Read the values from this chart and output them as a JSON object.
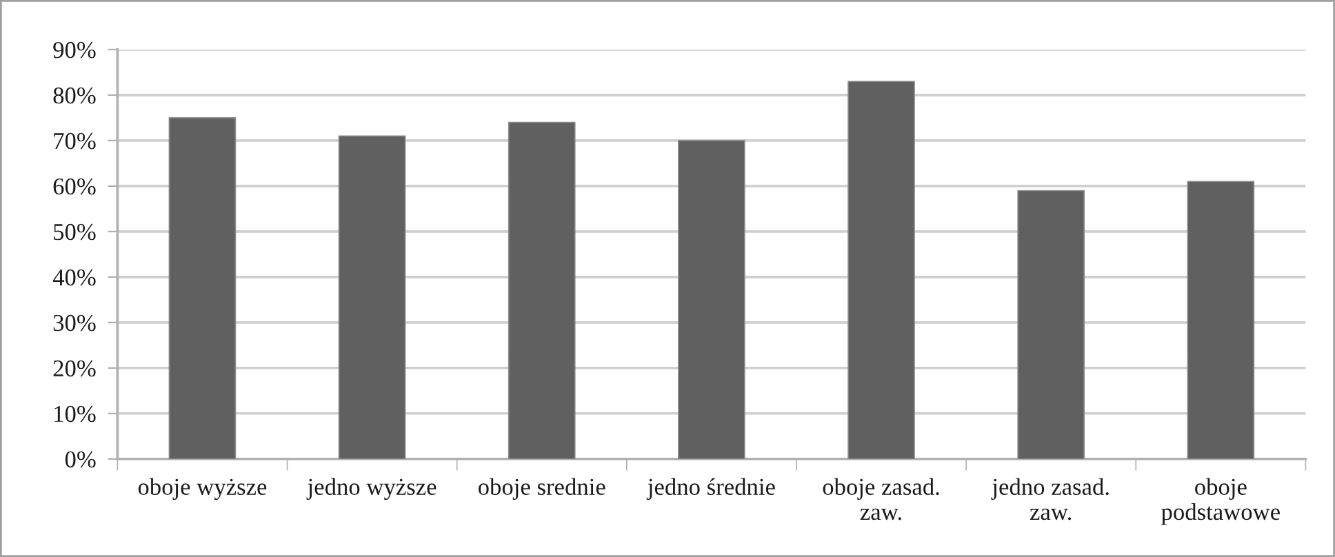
{
  "chart_data": {
    "type": "bar",
    "categories": [
      "oboje wyższe",
      "jedno wyższe",
      "oboje srednie",
      "jedno średnie",
      "oboje zasad.\nzaw.",
      "jedno zasad.\nzaw.",
      "oboje\npodstawowe"
    ],
    "values": [
      75,
      71,
      74,
      70,
      83,
      59,
      61
    ],
    "color": "#606060",
    "ylim": [
      0,
      90
    ],
    "yticks": [
      {
        "value": 0,
        "label": "0%"
      },
      {
        "value": 10,
        "label": "10%"
      },
      {
        "value": 20,
        "label": "20%"
      },
      {
        "value": 30,
        "label": "30%"
      },
      {
        "value": 40,
        "label": "40%"
      },
      {
        "value": 50,
        "label": "50%"
      },
      {
        "value": 60,
        "label": "60%"
      },
      {
        "value": 70,
        "label": "70%"
      },
      {
        "value": 80,
        "label": "80%"
      },
      {
        "value": 90,
        "label": "90%"
      }
    ],
    "grid": "y",
    "legend": false
  }
}
